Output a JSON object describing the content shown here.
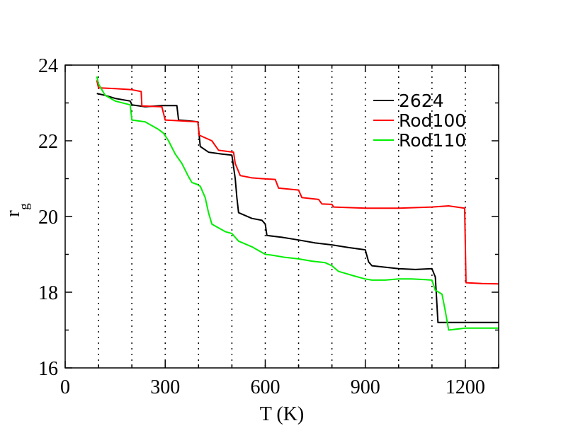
{
  "chart_data": {
    "type": "line",
    "xlabel": "T (K)",
    "ylabel": "r",
    "ylabel_sub": "g",
    "xlim": [
      0,
      1300
    ],
    "ylim": [
      16,
      24
    ],
    "xticks": [
      0,
      300,
      600,
      900,
      1200
    ],
    "yticks": [
      16,
      18,
      20,
      22,
      24
    ],
    "x_minor_step": 100,
    "y_minor_step": 1,
    "vertical_dotted_lines": [
      100,
      200,
      300,
      400,
      500,
      600,
      700,
      800,
      900,
      1000,
      1100,
      1200
    ],
    "legend_position": "top-right",
    "series": [
      {
        "name": "2624",
        "color": "#000000",
        "points": [
          [
            95,
            23.25
          ],
          [
            120,
            23.2
          ],
          [
            150,
            23.12
          ],
          [
            195,
            23.05
          ],
          [
            200,
            22.95
          ],
          [
            240,
            22.9
          ],
          [
            290,
            22.93
          ],
          [
            335,
            22.93
          ],
          [
            340,
            22.55
          ],
          [
            380,
            22.52
          ],
          [
            398,
            22.5
          ],
          [
            405,
            21.85
          ],
          [
            430,
            21.7
          ],
          [
            470,
            21.65
          ],
          [
            500,
            21.62
          ],
          [
            510,
            21.0
          ],
          [
            515,
            20.5
          ],
          [
            520,
            20.1
          ],
          [
            560,
            19.95
          ],
          [
            590,
            19.9
          ],
          [
            600,
            19.8
          ],
          [
            605,
            19.5
          ],
          [
            650,
            19.45
          ],
          [
            700,
            19.38
          ],
          [
            750,
            19.3
          ],
          [
            800,
            19.25
          ],
          [
            850,
            19.18
          ],
          [
            900,
            19.12
          ],
          [
            910,
            18.8
          ],
          [
            920,
            18.7
          ],
          [
            1000,
            18.62
          ],
          [
            1050,
            18.6
          ],
          [
            1100,
            18.62
          ],
          [
            1110,
            18.4
          ],
          [
            1118,
            17.2
          ],
          [
            1200,
            17.2
          ],
          [
            1300,
            17.2
          ]
        ]
      },
      {
        "name": "Rod100",
        "color": "#ff0000",
        "points": [
          [
            95,
            23.6
          ],
          [
            100,
            23.4
          ],
          [
            150,
            23.38
          ],
          [
            200,
            23.35
          ],
          [
            228,
            23.3
          ],
          [
            230,
            22.92
          ],
          [
            290,
            22.9
          ],
          [
            300,
            22.55
          ],
          [
            340,
            22.53
          ],
          [
            398,
            22.5
          ],
          [
            402,
            22.15
          ],
          [
            440,
            22.0
          ],
          [
            460,
            21.75
          ],
          [
            505,
            21.7
          ],
          [
            510,
            21.4
          ],
          [
            525,
            21.08
          ],
          [
            560,
            21.02
          ],
          [
            590,
            21.0
          ],
          [
            630,
            20.98
          ],
          [
            640,
            20.75
          ],
          [
            700,
            20.7
          ],
          [
            710,
            20.5
          ],
          [
            760,
            20.45
          ],
          [
            770,
            20.33
          ],
          [
            800,
            20.32
          ],
          [
            805,
            20.25
          ],
          [
            900,
            20.22
          ],
          [
            1000,
            20.22
          ],
          [
            1100,
            20.25
          ],
          [
            1150,
            20.28
          ],
          [
            1198,
            20.22
          ],
          [
            1202,
            18.25
          ],
          [
            1250,
            18.23
          ],
          [
            1300,
            18.22
          ]
        ]
      },
      {
        "name": "Rod110",
        "color": "#00ee00",
        "points": [
          [
            95,
            23.7
          ],
          [
            100,
            23.5
          ],
          [
            120,
            23.2
          ],
          [
            150,
            23.05
          ],
          [
            195,
            22.95
          ],
          [
            200,
            22.55
          ],
          [
            240,
            22.5
          ],
          [
            260,
            22.4
          ],
          [
            280,
            22.3
          ],
          [
            295,
            22.2
          ],
          [
            310,
            22.0
          ],
          [
            330,
            21.65
          ],
          [
            350,
            21.4
          ],
          [
            370,
            21.05
          ],
          [
            380,
            20.9
          ],
          [
            395,
            20.85
          ],
          [
            405,
            20.8
          ],
          [
            420,
            20.5
          ],
          [
            430,
            20.1
          ],
          [
            440,
            19.8
          ],
          [
            460,
            19.7
          ],
          [
            480,
            19.6
          ],
          [
            500,
            19.55
          ],
          [
            520,
            19.35
          ],
          [
            560,
            19.2
          ],
          [
            600,
            19.0
          ],
          [
            620,
            18.98
          ],
          [
            660,
            18.92
          ],
          [
            700,
            18.88
          ],
          [
            740,
            18.82
          ],
          [
            780,
            18.78
          ],
          [
            800,
            18.7
          ],
          [
            820,
            18.55
          ],
          [
            840,
            18.5
          ],
          [
            870,
            18.42
          ],
          [
            900,
            18.35
          ],
          [
            920,
            18.32
          ],
          [
            960,
            18.32
          ],
          [
            1000,
            18.35
          ],
          [
            1040,
            18.35
          ],
          [
            1080,
            18.33
          ],
          [
            1100,
            18.32
          ],
          [
            1110,
            18.05
          ],
          [
            1130,
            17.95
          ],
          [
            1140,
            17.5
          ],
          [
            1150,
            17.0
          ],
          [
            1200,
            17.05
          ],
          [
            1250,
            17.05
          ],
          [
            1300,
            17.05
          ]
        ]
      }
    ]
  }
}
